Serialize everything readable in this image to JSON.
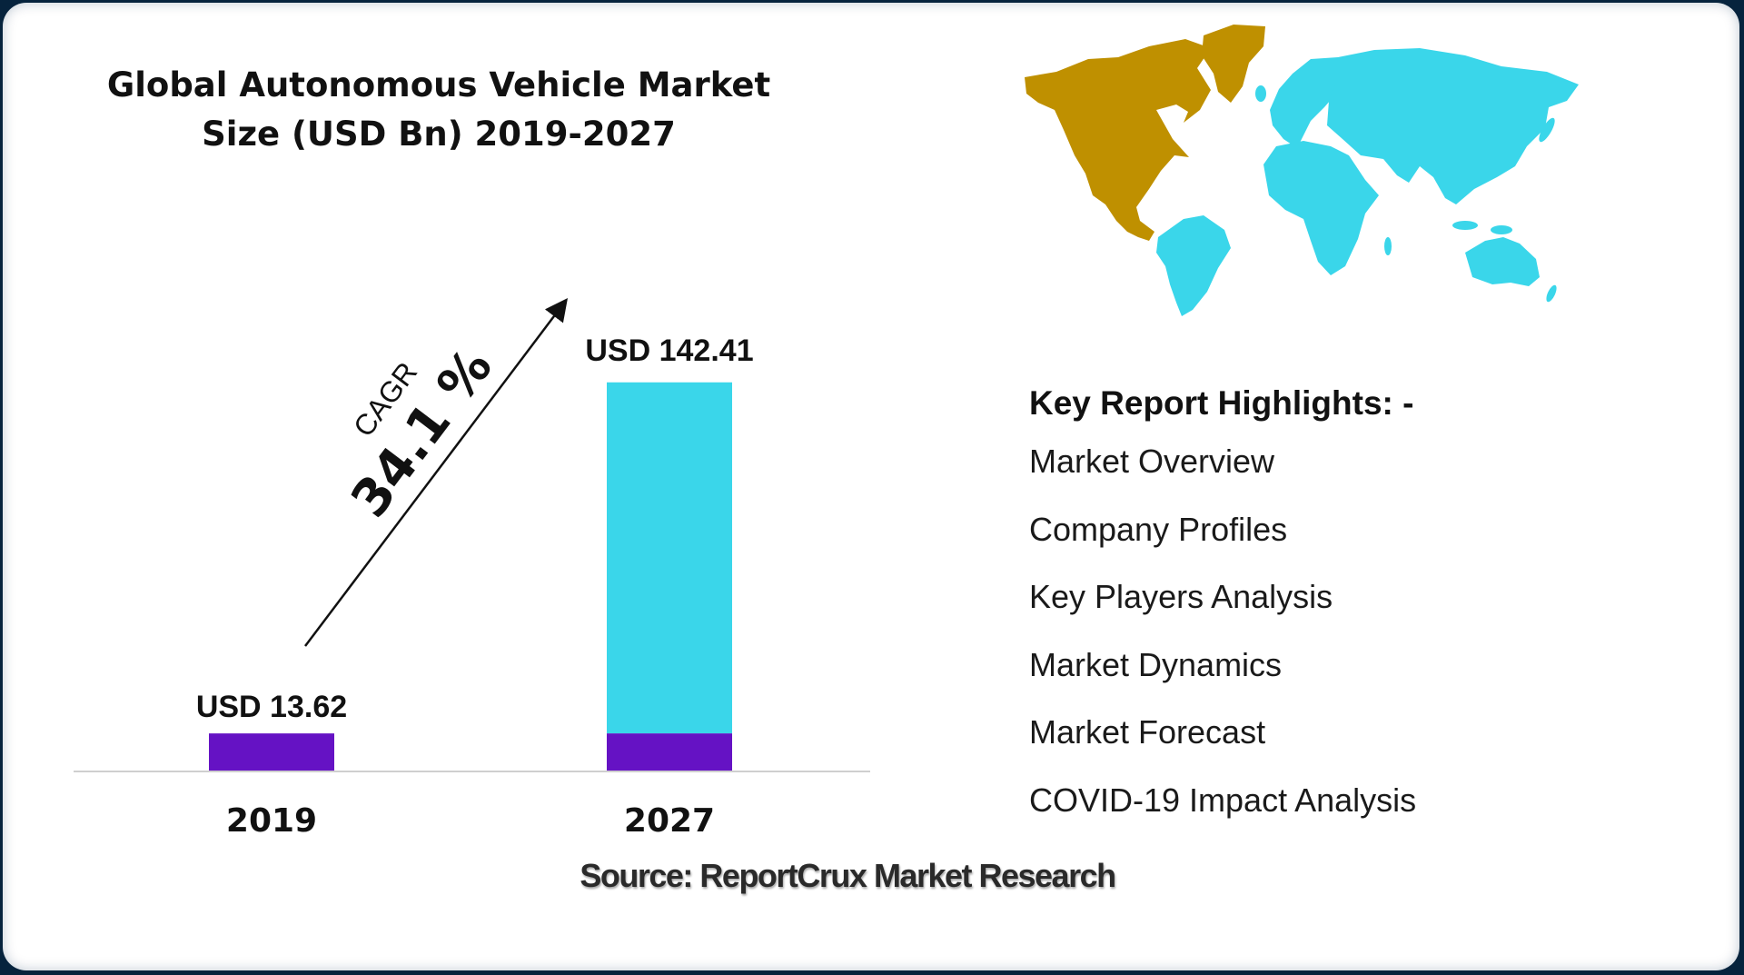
{
  "chart_data": {
    "type": "bar",
    "title": "Global Autonomous Vehicle Market Size (USD Bn) 2019-2027",
    "title_lines": [
      "Global Autonomous Vehicle Market",
      "Size (USD Bn) 2019-2027"
    ],
    "categories": [
      "2019",
      "2027"
    ],
    "values": [
      13.62,
      142.41
    ],
    "data_labels": [
      "USD 13.62",
      "USD 142.41"
    ],
    "unit": "USD Bn",
    "cagr_label": "CAGR",
    "cagr_value": "34.1 %",
    "colors": {
      "base": "#6512c4",
      "growth": "#3ad6ea",
      "axis": "#cfcfcf",
      "text": "#111111"
    }
  },
  "map": {
    "icon": "world-map-icon",
    "highlight_region": "North America",
    "colors": {
      "north_america": "#bf9000",
      "rest_of_world": "#3ad6ea"
    }
  },
  "highlights": {
    "heading": "Key Report Highlights: -",
    "items": [
      "Market Overview",
      "Company Profiles",
      "Key Players Analysis",
      "Market Dynamics",
      "Market Forecast",
      "COVID-19 Impact Analysis"
    ]
  },
  "source": "Source: ReportCrux Market Research"
}
